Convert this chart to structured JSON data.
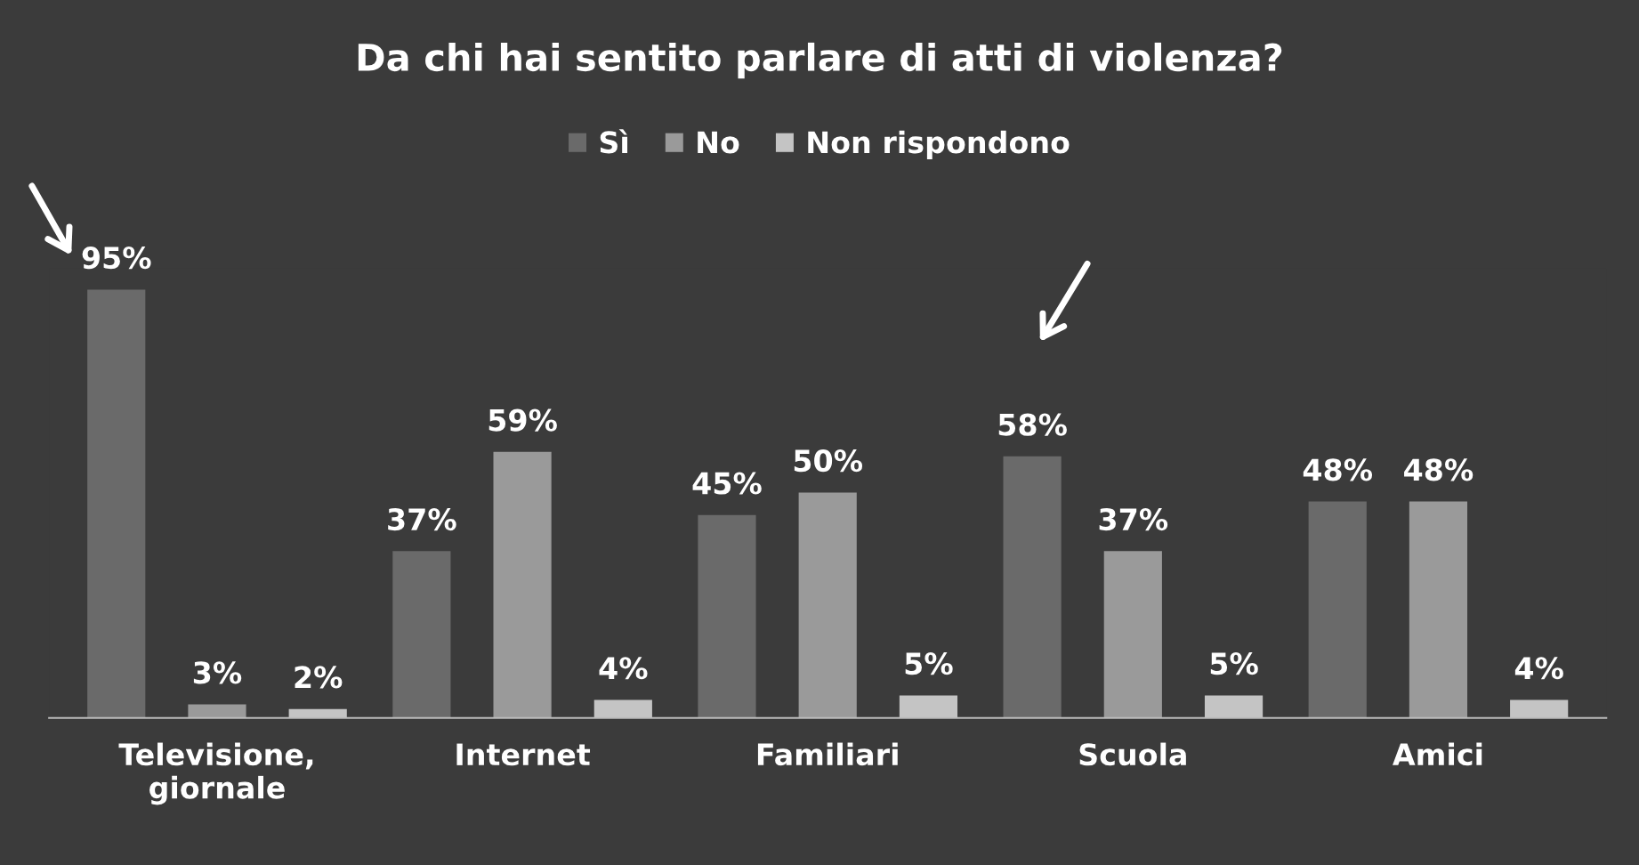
{
  "chart_data": {
    "type": "bar",
    "title": "Da chi hai sentito parlare di atti di violenza?",
    "categories": [
      "Televisione,\ngiornale",
      "Internet",
      "Familiari",
      "Scuola",
      "Amici"
    ],
    "series": [
      {
        "name": "Sì",
        "color": "#6a6a6a",
        "values": [
          95,
          37,
          45,
          58,
          48
        ],
        "value_labels": [
          "95%",
          "37%",
          "45%",
          "58%",
          "48%"
        ]
      },
      {
        "name": "No",
        "color": "#9a9a9a",
        "values": [
          3,
          59,
          50,
          37,
          48
        ],
        "value_labels": [
          "3%",
          "59%",
          "50%",
          "37%",
          "48%"
        ]
      },
      {
        "name": "Non rispondono",
        "color": "#c4c4c4",
        "values": [
          2,
          4,
          5,
          5,
          4
        ],
        "value_labels": [
          "2%",
          "4%",
          "5%",
          "5%",
          "4%"
        ]
      }
    ],
    "legend": "top",
    "grid": false
  }
}
